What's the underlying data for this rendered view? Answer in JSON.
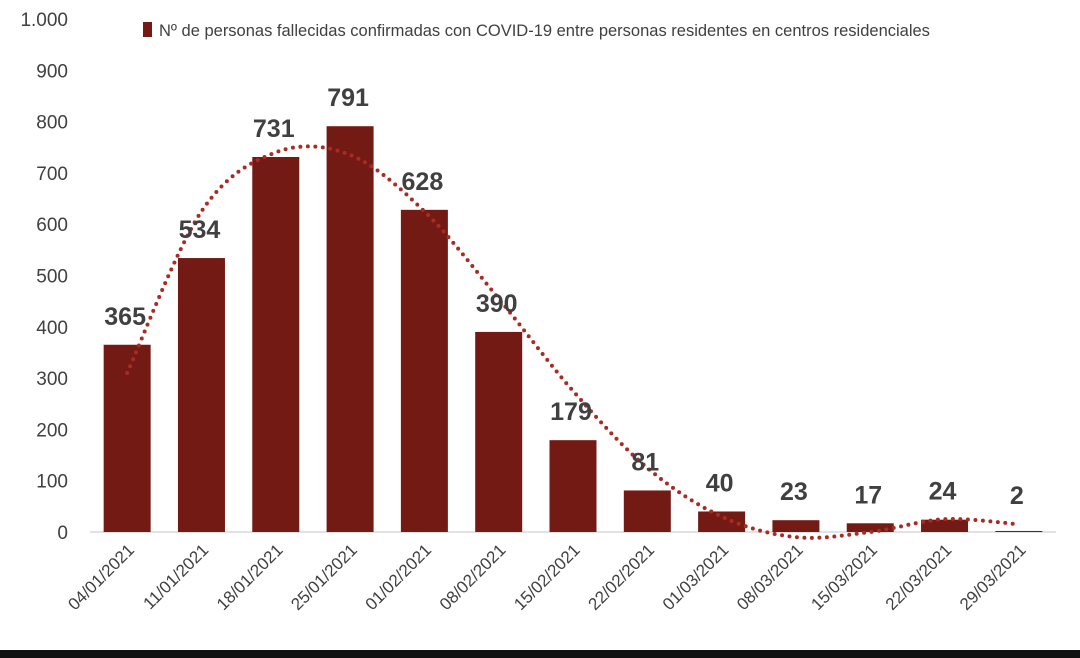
{
  "chart_data": {
    "type": "bar",
    "title": "",
    "xlabel": "",
    "ylabel": "",
    "ylim": [
      0,
      1000
    ],
    "yticks": [
      0,
      100,
      200,
      300,
      400,
      500,
      600,
      700,
      800,
      900,
      1000
    ],
    "ytick_labels": [
      "0",
      "100",
      "200",
      "300",
      "400",
      "500",
      "600",
      "700",
      "800",
      "900",
      "1.000"
    ],
    "grid": false,
    "legend_position": "top",
    "series": [
      {
        "name": "Nº de personas fallecidas confirmadas con COVID-19 entre personas residentes en centros residenciales",
        "color": "#731A14",
        "values": [
          365,
          534,
          731,
          791,
          628,
          390,
          179,
          81,
          40,
          23,
          17,
          24,
          2
        ]
      }
    ],
    "categories": [
      "04/01/2021",
      "11/01/2021",
      "18/01/2021",
      "25/01/2021",
      "01/02/2021",
      "08/02/2021",
      "15/02/2021",
      "22/02/2021",
      "01/03/2021",
      "08/03/2021",
      "15/03/2021",
      "22/03/2021",
      "29/03/2021"
    ],
    "data_labels": [
      "365",
      "534",
      "731",
      "791",
      "628",
      "390",
      "179",
      "81",
      "40",
      "23",
      "17",
      "24",
      "2"
    ],
    "trendline": {
      "type": "polynomial",
      "style": "dotted",
      "color": "#A82C24",
      "values": [
        310,
        625,
        740,
        735,
        625,
        455,
        275,
        125,
        30,
        -10,
        0,
        25,
        15
      ]
    }
  }
}
